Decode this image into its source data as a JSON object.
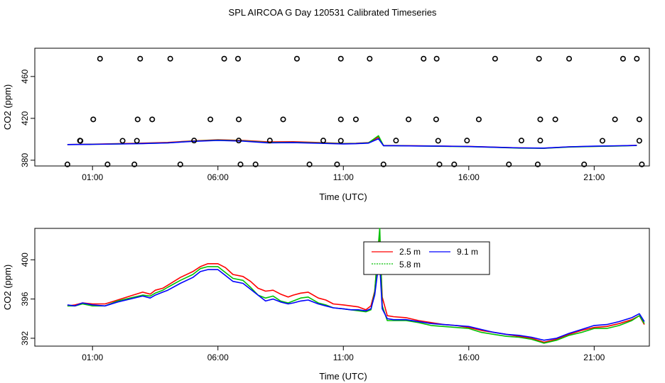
{
  "title": "SPL AIRCOA G  Day 120531  Calibrated Timeseries",
  "colors": {
    "s1": "#ff0000",
    "s2": "#00c000",
    "s3": "#0000ff"
  },
  "chart_data": [
    {
      "type": "line",
      "name": "top",
      "xlabel": "Time (UTC)",
      "ylabel": "CO2 (ppm)",
      "xlim": [
        -1.3,
        23.2
      ],
      "ylim": [
        374.5,
        487
      ],
      "xticks": [
        1,
        6,
        11,
        16,
        21
      ],
      "xtick_labels": [
        "01:00",
        "06:00",
        "11:00",
        "16:00",
        "21:00"
      ],
      "yticks": [
        380,
        420,
        460
      ],
      "ytick_labels": [
        "380",
        "420",
        "460"
      ],
      "series": [
        {
          "name": "2.5 m",
          "color": "#ff0000",
          "x": [
            0,
            1,
            2,
            3,
            4,
            5,
            6,
            7,
            8,
            9,
            10,
            11,
            11.5,
            12,
            12.4,
            12.6,
            13,
            14,
            15,
            16,
            17,
            18,
            19,
            20,
            21,
            22,
            22.7
          ],
          "y": [
            395,
            395.3,
            395.8,
            396.3,
            397,
            398.4,
            399.5,
            398.8,
            397.5,
            397.7,
            396.9,
            396,
            396.2,
            396.8,
            402,
            394,
            394,
            393.8,
            393.5,
            393.2,
            392.5,
            391.8,
            391.5,
            392.7,
            393.3,
            393.7,
            394.2
          ]
        },
        {
          "name": "5.8 m",
          "color": "#00c000",
          "x": [
            0,
            1,
            2,
            3,
            4,
            5,
            6,
            7,
            8,
            9,
            10,
            11,
            11.5,
            12,
            12.4,
            12.6,
            13,
            14,
            15,
            16,
            17,
            18,
            19,
            20,
            21,
            22,
            22.7
          ],
          "y": [
            395,
            395.2,
            395.6,
            396,
            396.6,
            398.2,
            399.2,
            398.4,
            396.9,
            397.1,
            396.5,
            395.8,
            396,
            396.6,
            403.4,
            393.9,
            393.9,
            393.6,
            393.3,
            393,
            392.3,
            391.6,
            391.4,
            392.6,
            393.2,
            393.6,
            394
          ]
        },
        {
          "name": "9.1 m",
          "color": "#0000ff",
          "x": [
            0,
            1,
            2,
            3,
            4,
            5,
            6,
            7,
            8,
            9,
            10,
            11,
            11.5,
            12,
            12.4,
            12.6,
            13,
            14,
            15,
            16,
            17,
            18,
            19,
            20,
            21,
            22,
            22.7
          ],
          "y": [
            395,
            395.2,
            395.5,
            395.9,
            396.5,
            398,
            398.9,
            398.2,
            396.6,
            396.8,
            396.2,
            395.6,
            395.8,
            396.3,
            400.5,
            393.9,
            393.9,
            393.6,
            393.4,
            393.1,
            392.4,
            391.8,
            391.6,
            392.8,
            393.4,
            393.8,
            394.1
          ]
        }
      ],
      "markers": [
        {
          "x": 0,
          "y": 376
        },
        {
          "x": 1.3,
          "y": 477
        },
        {
          "x": 2.9,
          "y": 477
        },
        {
          "x": 4.1,
          "y": 477
        },
        {
          "x": 6.25,
          "y": 477
        },
        {
          "x": 6.8,
          "y": 477
        },
        {
          "x": 9.15,
          "y": 477
        },
        {
          "x": 10.9,
          "y": 477
        },
        {
          "x": 12.05,
          "y": 477
        },
        {
          "x": 14.2,
          "y": 477
        },
        {
          "x": 14.72,
          "y": 477
        },
        {
          "x": 17.05,
          "y": 477
        },
        {
          "x": 18.8,
          "y": 477
        },
        {
          "x": 20,
          "y": 477
        },
        {
          "x": 22.15,
          "y": 477
        },
        {
          "x": 22.7,
          "y": 477
        },
        {
          "x": 0.5,
          "y": 398.7
        },
        {
          "x": 0.52,
          "y": 398.5
        },
        {
          "x": 2.2,
          "y": 398.6
        },
        {
          "x": 2.77,
          "y": 398.6
        },
        {
          "x": 5.05,
          "y": 398.8
        },
        {
          "x": 6.83,
          "y": 398.8
        },
        {
          "x": 8.07,
          "y": 398.8
        },
        {
          "x": 10.2,
          "y": 398.8
        },
        {
          "x": 10.9,
          "y": 398.6
        },
        {
          "x": 13.1,
          "y": 398.8
        },
        {
          "x": 14.78,
          "y": 398.6
        },
        {
          "x": 15.93,
          "y": 398.8
        },
        {
          "x": 18.1,
          "y": 398.8
        },
        {
          "x": 18.85,
          "y": 398.8
        },
        {
          "x": 21.33,
          "y": 398.6
        },
        {
          "x": 22.8,
          "y": 398.6
        },
        {
          "x": 1.03,
          "y": 419
        },
        {
          "x": 2.8,
          "y": 419
        },
        {
          "x": 3.38,
          "y": 419
        },
        {
          "x": 5.7,
          "y": 419
        },
        {
          "x": 6.83,
          "y": 419
        },
        {
          "x": 8.6,
          "y": 419
        },
        {
          "x": 10.9,
          "y": 419
        },
        {
          "x": 11.5,
          "y": 419
        },
        {
          "x": 13.6,
          "y": 419
        },
        {
          "x": 14.7,
          "y": 419
        },
        {
          "x": 16.4,
          "y": 419
        },
        {
          "x": 18.85,
          "y": 419
        },
        {
          "x": 19.45,
          "y": 419
        },
        {
          "x": 21.83,
          "y": 419
        },
        {
          "x": 22.8,
          "y": 419
        },
        {
          "x": 1.6,
          "y": 376
        },
        {
          "x": 2.67,
          "y": 376
        },
        {
          "x": 4.5,
          "y": 376
        },
        {
          "x": 6.9,
          "y": 376
        },
        {
          "x": 7.5,
          "y": 376
        },
        {
          "x": 9.65,
          "y": 376
        },
        {
          "x": 10.75,
          "y": 376
        },
        {
          "x": 12.6,
          "y": 376
        },
        {
          "x": 14.83,
          "y": 376
        },
        {
          "x": 15.42,
          "y": 376
        },
        {
          "x": 17.6,
          "y": 376
        },
        {
          "x": 18.75,
          "y": 376
        },
        {
          "x": 20.6,
          "y": 376
        },
        {
          "x": 22.9,
          "y": 376
        }
      ]
    },
    {
      "type": "line",
      "name": "bottom",
      "xlabel": "Time (UTC)",
      "ylabel": "CO2 (ppm)",
      "xlim": [
        -1.3,
        23.2
      ],
      "ylim": [
        391.2,
        403.2
      ],
      "xticks": [
        1,
        6,
        11,
        16,
        21
      ],
      "xtick_labels": [
        "01:00",
        "06:00",
        "11:00",
        "16:00",
        "21:00"
      ],
      "yticks": [
        392,
        396,
        400
      ],
      "ytick_labels": [
        "392",
        "396",
        "400"
      ],
      "legend": "top-center",
      "series": [
        {
          "name": "2.5 m",
          "color": "#ff0000",
          "x": [
            0,
            0.3,
            0.6,
            1,
            1.5,
            2,
            2.5,
            3,
            3.3,
            3.5,
            3.8,
            4,
            4.5,
            5,
            5.3,
            5.6,
            6,
            6.3,
            6.6,
            7,
            7.3,
            7.6,
            7.9,
            8.2,
            8.5,
            8.8,
            9,
            9.3,
            9.6,
            10,
            10.3,
            10.6,
            11,
            11.3,
            11.6,
            11.9,
            12.1,
            12.25,
            12.35,
            12.45,
            12.55,
            12.75,
            13,
            13.5,
            14,
            14.5,
            15,
            15.5,
            16,
            16.5,
            17,
            17.5,
            18,
            18.5,
            19,
            19.5,
            20,
            20.5,
            21,
            21.5,
            22,
            22.5,
            22.8,
            23
          ],
          "y": [
            395.3,
            395.4,
            395.6,
            395.5,
            395.5,
            395.9,
            396.3,
            396.7,
            396.5,
            396.9,
            397.1,
            397.4,
            398.2,
            398.8,
            399.3,
            399.6,
            399.6,
            399.2,
            398.5,
            398.3,
            397.8,
            397.1,
            396.8,
            396.9,
            396.5,
            396.2,
            396.4,
            396.6,
            396.7,
            396.1,
            395.9,
            395.5,
            395.4,
            395.3,
            395.2,
            394.9,
            395.3,
            396.8,
            399.8,
            402.1,
            396.2,
            394.3,
            394.2,
            394.1,
            393.8,
            393.6,
            393.4,
            393.3,
            393.1,
            392.8,
            392.6,
            392.4,
            392.2,
            392,
            391.6,
            391.9,
            392.4,
            392.8,
            393.1,
            393.2,
            393.5,
            393.9,
            394.3,
            393.4
          ]
        },
        {
          "name": "5.8 m",
          "color": "#00c000",
          "x": [
            0,
            0.3,
            0.6,
            1,
            1.5,
            2,
            2.5,
            3,
            3.3,
            3.5,
            3.8,
            4,
            4.5,
            5,
            5.3,
            5.6,
            6,
            6.3,
            6.6,
            7,
            7.3,
            7.6,
            7.9,
            8.2,
            8.5,
            8.8,
            9,
            9.3,
            9.6,
            10,
            10.3,
            10.6,
            11,
            11.3,
            11.6,
            11.9,
            12.1,
            12.25,
            12.35,
            12.45,
            12.55,
            12.75,
            13,
            13.5,
            14,
            14.5,
            15,
            15.5,
            16,
            16.5,
            17,
            17.5,
            18,
            18.5,
            19,
            19.5,
            20,
            20.5,
            21,
            21.5,
            22,
            22.5,
            22.8,
            23
          ],
          "y": [
            395.3,
            395.3,
            395.5,
            395.3,
            395.3,
            395.8,
            396.1,
            396.4,
            396.3,
            396.6,
            396.9,
            397.2,
            397.9,
            398.5,
            399.1,
            399.3,
            399.3,
            398.7,
            398.1,
            397.9,
            397.2,
            396.4,
            396.1,
            396.3,
            395.8,
            395.6,
            395.8,
            396.1,
            396.2,
            395.6,
            395.4,
            395.1,
            395,
            394.9,
            394.8,
            394.7,
            394.9,
            396.7,
            400.1,
            403.2,
            395.3,
            393.8,
            393.8,
            393.8,
            393.6,
            393.3,
            393.2,
            393.1,
            393,
            392.6,
            392.4,
            392.2,
            392.1,
            391.9,
            391.5,
            391.8,
            392.3,
            392.6,
            393,
            393,
            393.3,
            393.8,
            394.3,
            393.5
          ]
        },
        {
          "name": "9.1 m",
          "color": "#0000ff",
          "x": [
            0,
            0.3,
            0.6,
            1,
            1.5,
            2,
            2.5,
            3,
            3.3,
            3.5,
            3.8,
            4,
            4.5,
            5,
            5.3,
            5.6,
            6,
            6.3,
            6.6,
            7,
            7.3,
            7.6,
            7.9,
            8.2,
            8.5,
            8.8,
            9,
            9.3,
            9.6,
            10,
            10.3,
            10.6,
            11,
            11.3,
            11.6,
            11.9,
            12.1,
            12.25,
            12.35,
            12.45,
            12.55,
            12.75,
            13,
            13.5,
            14,
            14.5,
            15,
            15.5,
            16,
            16.5,
            17,
            17.5,
            18,
            18.5,
            19,
            19.5,
            20,
            20.5,
            21,
            21.5,
            22,
            22.5,
            22.8,
            23
          ],
          "y": [
            395.4,
            395.3,
            395.6,
            395.4,
            395.3,
            395.7,
            396,
            396.3,
            396.1,
            396.4,
            396.7,
            396.9,
            397.6,
            398.2,
            398.8,
            399,
            399,
            398.4,
            397.8,
            397.6,
            397,
            396.4,
            395.8,
            396,
            395.7,
            395.5,
            395.6,
            395.8,
            395.9,
            395.5,
            395.3,
            395.1,
            395,
            394.9,
            394.9,
            394.8,
            395,
            396.4,
            398.4,
            399.6,
            395,
            394,
            393.9,
            393.9,
            393.7,
            393.5,
            393.4,
            393.3,
            393.2,
            392.9,
            392.6,
            392.4,
            392.3,
            392.1,
            391.8,
            392,
            392.5,
            392.9,
            393.3,
            393.4,
            393.7,
            394.1,
            394.5,
            393.7
          ]
        }
      ]
    }
  ]
}
